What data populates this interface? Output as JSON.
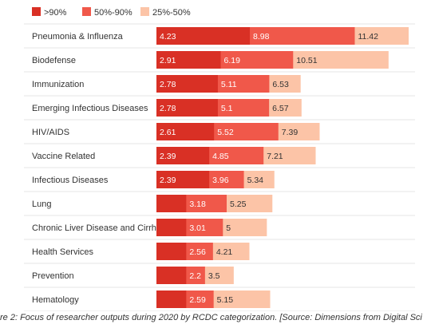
{
  "chart_data": {
    "type": "bar",
    "stacked": true,
    "legend_position": "top-left",
    "categories": [
      "Pneumonia & Influenza",
      "Biodefense",
      "Immunization",
      "Emerging Infectious Diseases",
      "HIV/AIDS",
      "Vaccine Related",
      "Infectious Diseases",
      "Lung",
      "Chronic Liver Disease and Cirrhosis",
      "Health Services",
      "Prevention",
      "Hematology"
    ],
    "series": [
      {
        "name": ">90%",
        "color": "#d93025",
        "labels": [
          "4.23",
          "2.91",
          "2.78",
          "2.78",
          "2.61",
          "2.39",
          "2.39",
          "",
          "",
          "",
          "",
          ""
        ]
      },
      {
        "name": "50%-90%",
        "color": "#f0584a",
        "labels": [
          "8.98",
          "6.19",
          "5.11",
          "5.1",
          "5.52",
          "4.85",
          "3.96",
          "3.18",
          "3.01",
          "2.56",
          "2.2",
          "2.59"
        ]
      },
      {
        "name": "25%-50%",
        "color": "#fcc4a7",
        "labels": [
          "11.42",
          "10.51",
          "6.53",
          "6.57",
          "7.39",
          "7.21",
          "5.34",
          "5.25",
          "5",
          "4.21",
          "3.5",
          "5.15"
        ]
      }
    ],
    "cumulative_values": {
      ">90%": [
        4.23,
        2.91,
        2.78,
        2.78,
        2.61,
        2.39,
        2.39,
        1.35,
        1.35,
        1.35,
        1.35,
        1.35
      ],
      "50%-90%": [
        8.98,
        6.19,
        5.11,
        5.1,
        5.52,
        4.85,
        3.96,
        3.18,
        3.01,
        2.56,
        2.2,
        2.59
      ],
      "25%-50%": [
        11.42,
        10.51,
        6.53,
        6.57,
        7.39,
        7.21,
        5.34,
        5.25,
        5,
        4.21,
        3.5,
        5.15
      ]
    },
    "xlim": [
      0,
      11.42
    ],
    "grid": true
  },
  "caption": "re 2: Focus of researcher outputs during 2020 by RCDC categorization. [Source: Dimensions from Digital Sci"
}
